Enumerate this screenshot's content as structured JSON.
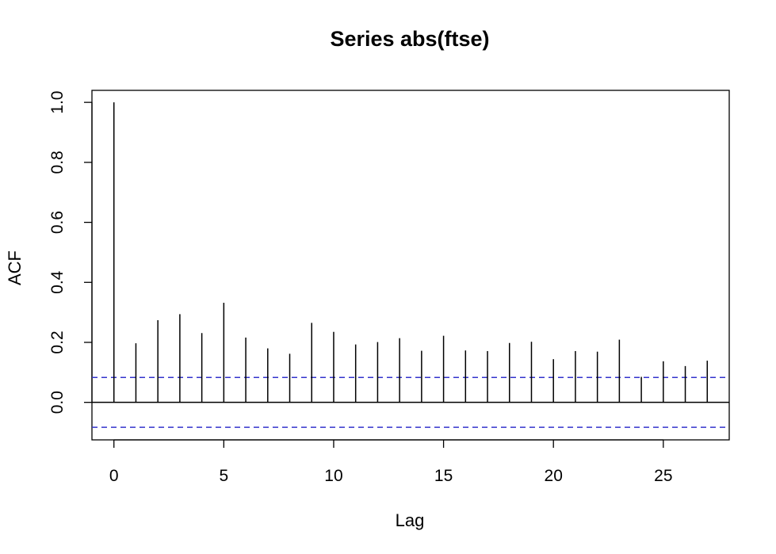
{
  "chart_data": {
    "type": "bar",
    "title": "Series  abs(ftse)",
    "xlabel": "Lag",
    "ylabel": "ACF",
    "xlim": [
      -1,
      28
    ],
    "ylim": [
      -0.125,
      1.04
    ],
    "x_ticks": [
      0,
      5,
      10,
      15,
      20,
      25
    ],
    "y_ticks": [
      0.0,
      0.2,
      0.4,
      0.6,
      0.8,
      1.0
    ],
    "y_tick_labels": [
      "0.0",
      "0.2",
      "0.4",
      "0.6",
      "0.8",
      "1.0"
    ],
    "zero_line": 0,
    "confidence_bound": 0.083,
    "colors": {
      "bars": "#000000",
      "confidence": "#3333cc",
      "axes": "#000000"
    },
    "lags": [
      0,
      1,
      2,
      3,
      4,
      5,
      6,
      7,
      8,
      9,
      10,
      11,
      12,
      13,
      14,
      15,
      16,
      17,
      18,
      19,
      20,
      21,
      22,
      23,
      24,
      25,
      26,
      27
    ],
    "acf": [
      1.0,
      0.197,
      0.274,
      0.294,
      0.231,
      0.332,
      0.216,
      0.18,
      0.162,
      0.265,
      0.235,
      0.193,
      0.201,
      0.214,
      0.172,
      0.222,
      0.173,
      0.171,
      0.198,
      0.202,
      0.144,
      0.171,
      0.169,
      0.209,
      0.085,
      0.137,
      0.121,
      0.139
    ]
  }
}
